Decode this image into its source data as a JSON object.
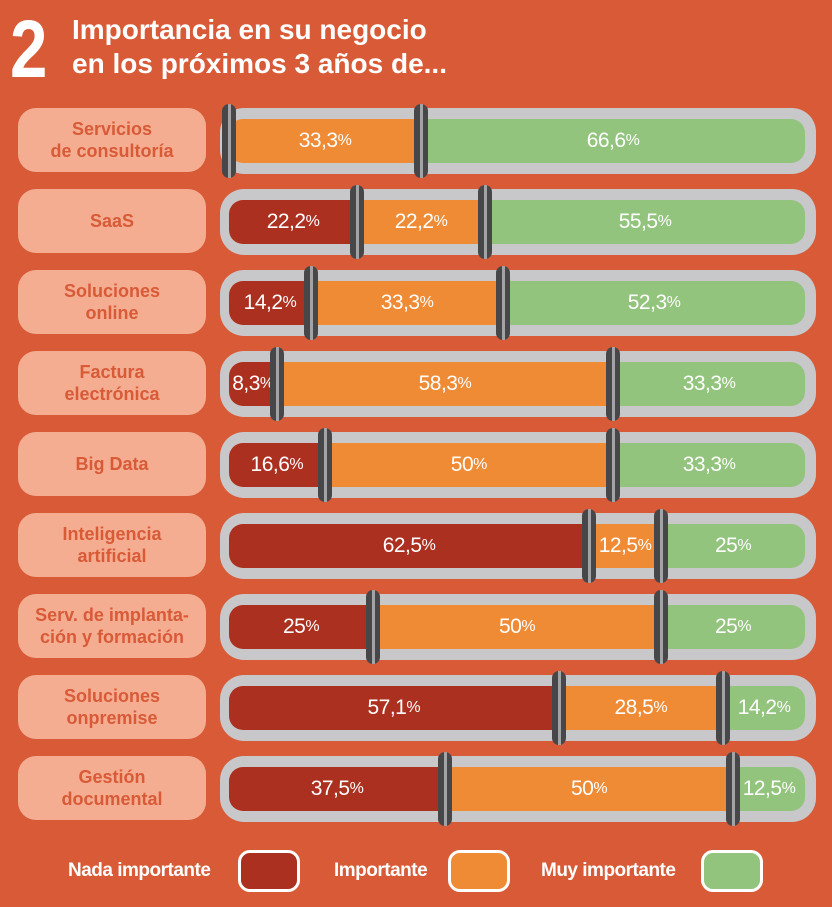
{
  "header": {
    "number": "2",
    "title_line1": "Importancia en su negocio",
    "title_line2": "en los próximos 3 años de..."
  },
  "colors": {
    "background": "#d85a37",
    "nada_importante": "#ac3020",
    "importante": "#ef8b35",
    "muy_importante": "#93c47d",
    "category_box": "#f5ad92",
    "track": "#c8c7c9"
  },
  "chart_data": {
    "type": "bar",
    "orientation": "horizontal-stacked-100",
    "title": "Importancia en su negocio en los próximos 3 años de...",
    "categories": [
      "Servicios\nde consultoría",
      "SaaS",
      "Soluciones\nonline",
      "Factura\nelectrónica",
      "Big Data",
      "Inteligencia\nartificial",
      "Serv. de implanta-\nción y formación",
      "Soluciones\nonpremise",
      "Gestión\ndocumental"
    ],
    "series": [
      {
        "name": "Nada importante",
        "values": [
          0,
          22.2,
          14.2,
          8.3,
          16.6,
          62.5,
          25,
          57.1,
          37.5
        ],
        "labels": [
          "",
          "22,2",
          "14,2",
          "8,3",
          "16,6",
          "62,5",
          "25",
          "57,1",
          "37,5"
        ]
      },
      {
        "name": "Importante",
        "values": [
          33.3,
          22.2,
          33.3,
          58.3,
          50,
          12.5,
          50,
          28.5,
          50
        ],
        "labels": [
          "33,3",
          "22,2",
          "33,3",
          "58,3",
          "50",
          "12,5",
          "50",
          "28,5",
          "50"
        ]
      },
      {
        "name": "Muy importante",
        "values": [
          66.6,
          55.5,
          52.3,
          33.3,
          33.3,
          25,
          25,
          14.2,
          12.5
        ],
        "labels": [
          "66,6",
          "55,5",
          "52,3",
          "33,3",
          "33,3",
          "25",
          "25",
          "14,2",
          "12,5"
        ]
      }
    ],
    "unit": "%",
    "xlim": [
      0,
      100
    ],
    "legend": {
      "position": "bottom",
      "entries": [
        "Nada importante",
        "Importante",
        "Muy importante"
      ]
    }
  }
}
